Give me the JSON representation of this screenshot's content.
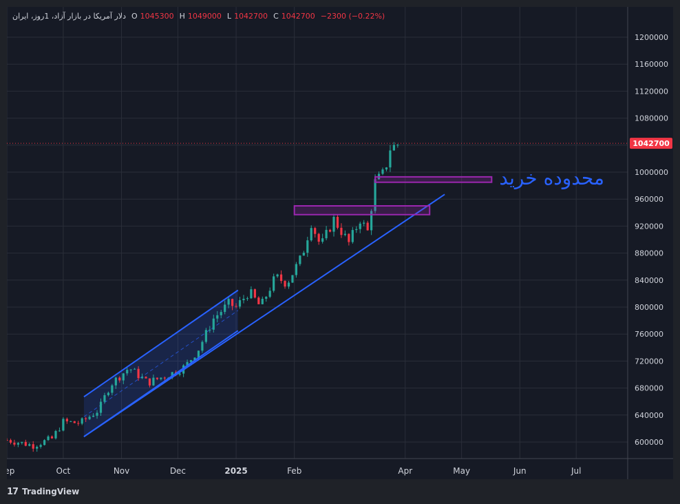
{
  "symbol": {
    "name": "دلار آمریکا در بازار آزاد، 1روز، ایران",
    "open_label": "O",
    "open": "1045300",
    "high_label": "H",
    "high": "1049000",
    "low_label": "L",
    "low": "1042700",
    "close_label": "C",
    "close": "1042700",
    "change": "−2300 (−0.22%)"
  },
  "footer": {
    "brand": "TradingView",
    "logo": "17"
  },
  "annotation": {
    "text": "محدوده خرید"
  },
  "colors": {
    "up": "#26a69a",
    "down": "#f23645",
    "trendline": "#2962ff",
    "zone": "#9c27b0",
    "annotation": "#2962ff",
    "price_badge": "#f23645"
  },
  "chart_data": {
    "type": "candlestick",
    "title": "دلار آمریکا در بازار آزاد",
    "x_ticks": [
      "Sep",
      "Oct",
      "Nov",
      "Dec",
      "2025",
      "Feb",
      "Apr",
      "May",
      "Jun",
      "Jul"
    ],
    "y_ticks": [
      600000,
      640000,
      680000,
      720000,
      760000,
      800000,
      840000,
      880000,
      920000,
      960000,
      1000000,
      1040000,
      1080000,
      1120000,
      1160000,
      1200000
    ],
    "ylim": [
      570000,
      1225000
    ],
    "last_price": 1042700,
    "last_price_label": "1042700",
    "close_path": [
      {
        "date": "2024-09-01",
        "close": 603000
      },
      {
        "date": "2024-09-15",
        "close": 595000
      },
      {
        "date": "2024-09-25",
        "close": 605000
      },
      {
        "date": "2024-10-01",
        "close": 630000
      },
      {
        "date": "2024-10-10",
        "close": 628000
      },
      {
        "date": "2024-10-20",
        "close": 648000
      },
      {
        "date": "2024-10-26",
        "close": 685000
      },
      {
        "date": "2024-11-05",
        "close": 710000
      },
      {
        "date": "2024-11-15",
        "close": 688000
      },
      {
        "date": "2024-11-28",
        "close": 702000
      },
      {
        "date": "2024-12-05",
        "close": 712000
      },
      {
        "date": "2024-12-12",
        "close": 738000
      },
      {
        "date": "2024-12-20",
        "close": 783000
      },
      {
        "date": "2024-12-28",
        "close": 805000
      },
      {
        "date": "2025-01-01",
        "close": 800000
      },
      {
        "date": "2025-01-08",
        "close": 823000
      },
      {
        "date": "2025-01-14",
        "close": 800000
      },
      {
        "date": "2025-01-22",
        "close": 845000
      },
      {
        "date": "2025-01-28",
        "close": 835000
      },
      {
        "date": "2025-02-05",
        "close": 875000
      },
      {
        "date": "2025-02-10",
        "close": 925000
      },
      {
        "date": "2025-02-15",
        "close": 890000
      },
      {
        "date": "2025-02-22",
        "close": 930000
      },
      {
        "date": "2025-03-02",
        "close": 895000
      },
      {
        "date": "2025-03-08",
        "close": 930000
      },
      {
        "date": "2025-03-12",
        "close": 912000
      },
      {
        "date": "2025-03-16",
        "close": 985000
      },
      {
        "date": "2025-03-21",
        "close": 1000000
      },
      {
        "date": "2025-03-24",
        "close": 1035000
      },
      {
        "date": "2025-03-29",
        "close": 1042700
      }
    ],
    "trendlines": [
      {
        "name": "channel upper",
        "from": {
          "date": "2024-10-12",
          "price": 667000
        },
        "to": {
          "date": "2025-01-02",
          "price": 825000
        }
      },
      {
        "name": "channel lower",
        "from": {
          "date": "2024-10-12",
          "price": 608000
        },
        "to": {
          "date": "2025-01-02",
          "price": 765000
        }
      },
      {
        "name": "main support",
        "from": {
          "date": "2024-10-12",
          "price": 608000
        },
        "to": {
          "date": "2025-04-22",
          "price": 967000
        }
      }
    ],
    "zones": [
      {
        "name": "buy zone",
        "from": "2025-03-16",
        "to": "2025-05-17",
        "low": 985000,
        "high": 993000
      },
      {
        "name": "lower zone",
        "from": "2025-02-01",
        "to": "2025-04-14",
        "low": 937000,
        "high": 950000
      }
    ]
  }
}
